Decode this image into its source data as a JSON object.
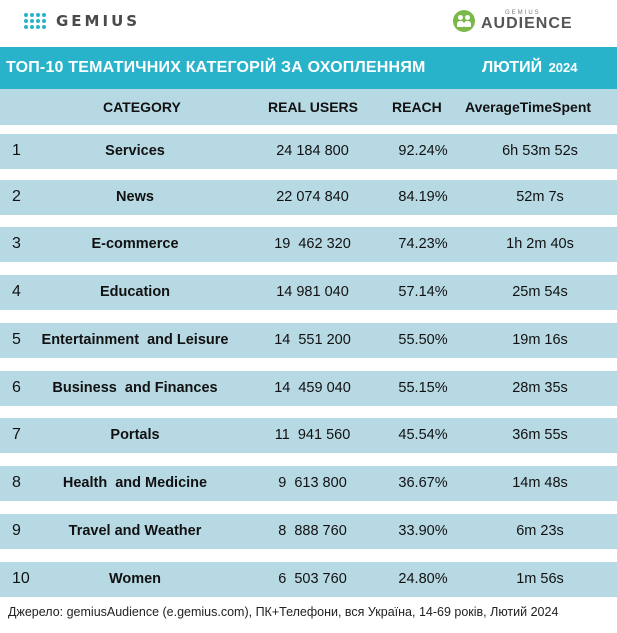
{
  "logos": {
    "gemius_text": "GEMIUS",
    "audience_small": "GEMIUS",
    "audience_big": "AUDIENCE",
    "accent_color": "#29b3cb",
    "audience_color": "#7bb84a"
  },
  "title": {
    "main": "ТОП-10 ТЕМАТИЧНИХ КАТЕГОРІЙ ЗА ОХОПЛЕННЯМ",
    "month": "ЛЮТИЙ",
    "year": "2024"
  },
  "table": {
    "headers": {
      "category": "CATEGORY",
      "real_users": "REAL USERS",
      "reach": "REACH",
      "time": "AverageTimeSpent"
    },
    "rows": [
      {
        "rank": "1",
        "category": "Services",
        "real_users": "24 184 800",
        "reach": "92.24%",
        "time": "6h 53m 52s"
      },
      {
        "rank": "2",
        "category": "News",
        "real_users": "22 074 840",
        "reach": "84.19%",
        "time": "52m 7s"
      },
      {
        "rank": "3",
        "category": "E-commerce",
        "real_users": "19  462 320",
        "reach": "74.23%",
        "time": "1h 2m 40s"
      },
      {
        "rank": "4",
        "category": "Education",
        "real_users": "14 981 040",
        "reach": "57.14%",
        "time": "25m 54s"
      },
      {
        "rank": "5",
        "category": "Entertainment  and Leisure",
        "real_users": "14  551 200",
        "reach": "55.50%",
        "time": "19m 16s"
      },
      {
        "rank": "6",
        "category": "Business  and Finances",
        "real_users": "14  459 040",
        "reach": "55.15%",
        "time": "28m 35s"
      },
      {
        "rank": "7",
        "category": "Portals",
        "real_users": "11  941 560",
        "reach": "45.54%",
        "time": "36m 55s"
      },
      {
        "rank": "8",
        "category": "Health  and Medicine",
        "real_users": "9  613 800",
        "reach": "36.67%",
        "time": "14m 48s"
      },
      {
        "rank": "9",
        "category": "Travel and Weather",
        "real_users": "8  888 760",
        "reach": "33.90%",
        "time": "6m 23s"
      },
      {
        "rank": "10",
        "category": "Women",
        "real_users": "6  503 760",
        "reach": "24.80%",
        "time": "1m 56s"
      }
    ]
  },
  "footer": "Джерело: gemiusAudience (e.gemius.com), ПК+Телефони, вся Україна, 14-69 років, Лютий  2024"
}
